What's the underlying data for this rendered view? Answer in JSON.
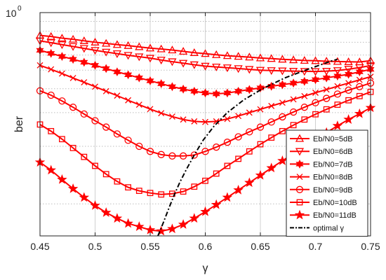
{
  "chart_data": {
    "type": "line",
    "xlabel": "γ",
    "ylabel": "ber",
    "yscale": "log",
    "xlim": [
      0.45,
      0.75
    ],
    "ylim": [
      0.068,
      1.0
    ],
    "xticks": [
      0.45,
      0.5,
      0.55,
      0.6,
      0.65,
      0.7,
      0.75
    ],
    "xtick_labels": [
      "0.45",
      "0.5",
      "0.55",
      "0.6",
      "0.65",
      "0.7",
      "0.75"
    ],
    "ytick_top_label": {
      "base": "10",
      "exp": "0"
    },
    "grid": true,
    "legend_position": "bottom-right",
    "series_color": "#ff0000",
    "x": [
      0.45,
      0.46,
      0.47,
      0.48,
      0.49,
      0.5,
      0.51,
      0.52,
      0.53,
      0.54,
      0.55,
      0.56,
      0.57,
      0.58,
      0.59,
      0.6,
      0.61,
      0.62,
      0.63,
      0.64,
      0.65,
      0.66,
      0.67,
      0.68,
      0.69,
      0.7,
      0.71,
      0.72,
      0.73,
      0.74,
      0.75
    ],
    "series": [
      {
        "name": "Eb/N0=5dB",
        "marker": "triangle-up",
        "values": [
          0.76,
          0.75,
          0.735,
          0.725,
          0.712,
          0.7,
          0.69,
          0.68,
          0.672,
          0.662,
          0.652,
          0.645,
          0.637,
          0.627,
          0.617,
          0.61,
          0.602,
          0.595,
          0.59,
          0.585,
          0.579,
          0.575,
          0.57,
          0.566,
          0.562,
          0.56,
          0.557,
          0.555,
          0.553,
          0.552,
          0.56
        ]
      },
      {
        "name": "Eb/N0=6dB",
        "marker": "triangle-down",
        "values": [
          0.712,
          0.696,
          0.68,
          0.665,
          0.65,
          0.635,
          0.622,
          0.61,
          0.598,
          0.588,
          0.578,
          0.565,
          0.554,
          0.544,
          0.534,
          0.525,
          0.52,
          0.515,
          0.51,
          0.505,
          0.5,
          0.498,
          0.496,
          0.494,
          0.493,
          0.492,
          0.494,
          0.498,
          0.506,
          0.516,
          0.528
        ]
      },
      {
        "name": "Eb/N0=7dB",
        "marker": "hexagram",
        "values": [
          0.635,
          0.612,
          0.59,
          0.57,
          0.55,
          0.53,
          0.51,
          0.49,
          0.473,
          0.456,
          0.44,
          0.425,
          0.41,
          0.398,
          0.388,
          0.38,
          0.376,
          0.38,
          0.388,
          0.396,
          0.404,
          0.412,
          0.42,
          0.428,
          0.437,
          0.446,
          0.456,
          0.466,
          0.476,
          0.49,
          0.505
        ]
      },
      {
        "name": "Eb/N0=8dB",
        "marker": "x",
        "values": [
          0.53,
          0.505,
          0.48,
          0.455,
          0.432,
          0.41,
          0.388,
          0.368,
          0.348,
          0.33,
          0.313,
          0.298,
          0.286,
          0.276,
          0.27,
          0.268,
          0.27,
          0.278,
          0.288,
          0.3,
          0.312,
          0.325,
          0.338,
          0.352,
          0.366,
          0.381,
          0.396,
          0.412,
          0.428,
          0.445,
          0.462
        ]
      },
      {
        "name": "Eb/N0=9dB",
        "marker": "circle",
        "values": [
          0.39,
          0.37,
          0.345,
          0.32,
          0.295,
          0.272,
          0.252,
          0.232,
          0.215,
          0.2,
          0.188,
          0.181,
          0.178,
          0.178,
          0.18,
          0.188,
          0.198,
          0.21,
          0.224,
          0.238,
          0.252,
          0.268,
          0.285,
          0.302,
          0.32,
          0.338,
          0.356,
          0.375,
          0.393,
          0.41,
          0.428
        ]
      },
      {
        "name": "Eb/N0=10dB",
        "marker": "square",
        "values": [
          0.26,
          0.24,
          0.218,
          0.196,
          0.176,
          0.158,
          0.143,
          0.131,
          0.122,
          0.117,
          0.114,
          0.112,
          0.113,
          0.116,
          0.123,
          0.132,
          0.144,
          0.158,
          0.172,
          0.188,
          0.205,
          0.222,
          0.24,
          0.258,
          0.276,
          0.294,
          0.312,
          0.33,
          0.348,
          0.366,
          0.385
        ]
      },
      {
        "name": "Eb/N0=11dB",
        "marker": "star",
        "values": [
          0.165,
          0.15,
          0.134,
          0.12,
          0.108,
          0.098,
          0.09,
          0.084,
          0.079,
          0.076,
          0.073,
          0.072,
          0.074,
          0.078,
          0.084,
          0.091,
          0.099,
          0.108,
          0.118,
          0.129,
          0.141,
          0.154,
          0.168,
          0.183,
          0.2,
          0.218,
          0.236,
          0.256,
          0.276,
          0.296,
          0.318
        ]
      }
    ],
    "optimal_curve": {
      "name": "optimal γ",
      "x": [
        0.557,
        0.562,
        0.567,
        0.572,
        0.577,
        0.583,
        0.59,
        0.598,
        0.608,
        0.62,
        0.635,
        0.652,
        0.672,
        0.695,
        0.715,
        0.72
      ],
      "values": [
        0.068,
        0.08,
        0.095,
        0.112,
        0.13,
        0.152,
        0.18,
        0.215,
        0.255,
        0.3,
        0.35,
        0.4,
        0.455,
        0.51,
        0.56,
        0.57
      ]
    }
  }
}
